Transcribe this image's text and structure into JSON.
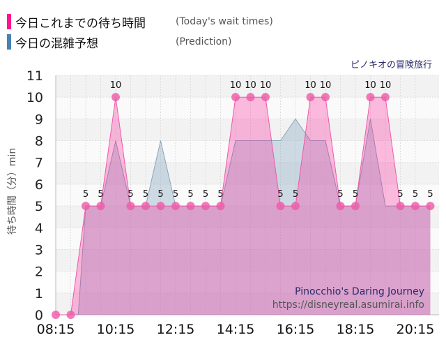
{
  "legend": {
    "today_label": "今日これまでの待ち時間",
    "today_sub": "(Today's wait times)",
    "today_color": "#ff1493",
    "prediction_label": "今日の混雑予想",
    "prediction_sub": "(Prediction)",
    "prediction_color": "#4682b4"
  },
  "attraction_name_ja": "ピノキオの冒険旅行",
  "attraction_name_en": "Pinocchio's Daring Journey",
  "site_url": "https://disneyreal.asumirai.info",
  "chart_data": {
    "type": "area",
    "ylabel": "待ち時間（分）min",
    "ylim": [
      0,
      11
    ],
    "yticks": [
      "0",
      "1",
      "2",
      "3",
      "4",
      "5",
      "6",
      "7",
      "8",
      "9",
      "10",
      "11"
    ],
    "xticks": [
      "08:15",
      "10:15",
      "12:15",
      "14:15",
      "16:15",
      "18:15",
      "20:15"
    ],
    "xlim": [
      "08:15",
      "20:30"
    ],
    "grid": true,
    "series": [
      {
        "name": "今日これまでの待ち時間",
        "color": "#ff1493",
        "x": [
          "08:15",
          "08:45",
          "09:15",
          "09:45",
          "10:15",
          "10:45",
          "11:15",
          "11:45",
          "12:15",
          "12:45",
          "13:15",
          "13:45",
          "14:15",
          "14:45",
          "15:15",
          "15:45",
          "16:15",
          "16:45",
          "17:15",
          "17:45",
          "18:15",
          "18:45",
          "19:15",
          "19:45",
          "20:15",
          "20:45"
        ],
        "values": [
          0,
          0,
          5,
          5,
          10,
          5,
          5,
          5,
          5,
          5,
          5,
          5,
          10,
          10,
          10,
          5,
          5,
          10,
          10,
          5,
          5,
          10,
          10,
          5,
          5,
          5
        ],
        "labels": [
          "",
          "",
          "5",
          "5",
          "10",
          "5",
          "5",
          "5",
          "5",
          "5",
          "5",
          "5",
          "10",
          "10",
          "10",
          "5",
          "5",
          "10",
          "10",
          "5",
          "5",
          "10",
          "10",
          "5",
          "5",
          "5"
        ]
      },
      {
        "name": "今日の混雑予想",
        "color": "#9ab4c8",
        "x": [
          "08:15",
          "09:00",
          "09:15",
          "09:45",
          "10:15",
          "10:45",
          "11:15",
          "11:45",
          "12:15",
          "12:45",
          "13:15",
          "13:45",
          "14:15",
          "14:45",
          "15:15",
          "15:45",
          "16:15",
          "16:45",
          "17:15",
          "17:45",
          "18:15",
          "18:45",
          "19:15",
          "19:45",
          "20:15",
          "20:45"
        ],
        "values": [
          0,
          0,
          5,
          5,
          8,
          5,
          5,
          8,
          5,
          5,
          5,
          5,
          8,
          8,
          8,
          8,
          9,
          8,
          8,
          5,
          5,
          9,
          5,
          5,
          5,
          5
        ]
      }
    ]
  }
}
